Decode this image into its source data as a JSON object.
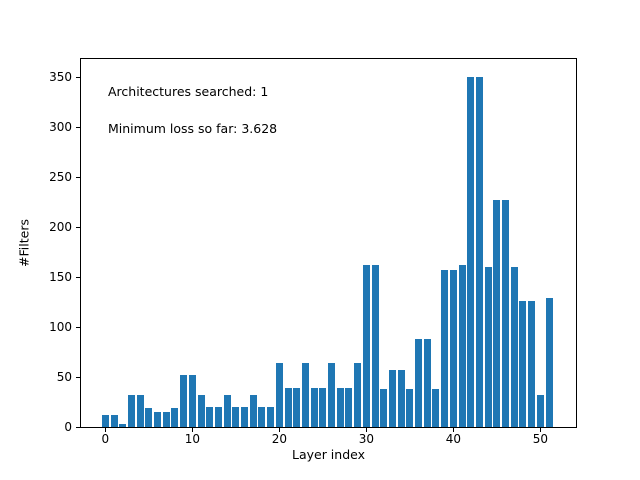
{
  "figure": {
    "background": "#ffffff",
    "text_color": "#000000"
  },
  "chart_data": {
    "type": "bar",
    "title": "",
    "xlabel": "Layer index",
    "ylabel": "#Filters",
    "bar_color": "#1f77b4",
    "categories": [
      0,
      1,
      2,
      3,
      4,
      5,
      6,
      7,
      8,
      9,
      10,
      11,
      12,
      13,
      14,
      15,
      16,
      17,
      18,
      19,
      20,
      21,
      22,
      23,
      24,
      25,
      26,
      27,
      28,
      29,
      30,
      31,
      32,
      33,
      34,
      35,
      36,
      37,
      38,
      39,
      40,
      41,
      42,
      43,
      44,
      45,
      46,
      47,
      48,
      49,
      50,
      51
    ],
    "values": [
      12,
      12,
      3,
      32,
      32,
      19,
      15,
      15,
      19,
      52,
      52,
      32,
      20,
      20,
      32,
      20,
      20,
      32,
      20,
      20,
      64,
      39,
      39,
      64,
      39,
      39,
      64,
      39,
      39,
      64,
      162,
      162,
      38,
      57,
      57,
      38,
      88,
      88,
      38,
      157,
      157,
      162,
      350,
      350,
      160,
      227,
      227,
      160,
      126,
      126,
      32,
      129
    ],
    "xticks": [
      0,
      10,
      20,
      30,
      40,
      50
    ],
    "yticks": [
      0,
      50,
      100,
      150,
      200,
      250,
      300,
      350
    ],
    "xlim": [
      -2.8,
      54.1
    ],
    "ylim": [
      0,
      367.5
    ],
    "grid": false,
    "legend": "none",
    "annotations": [
      "Architectures searched: 1",
      "Minimum loss so far: 3.628"
    ]
  }
}
